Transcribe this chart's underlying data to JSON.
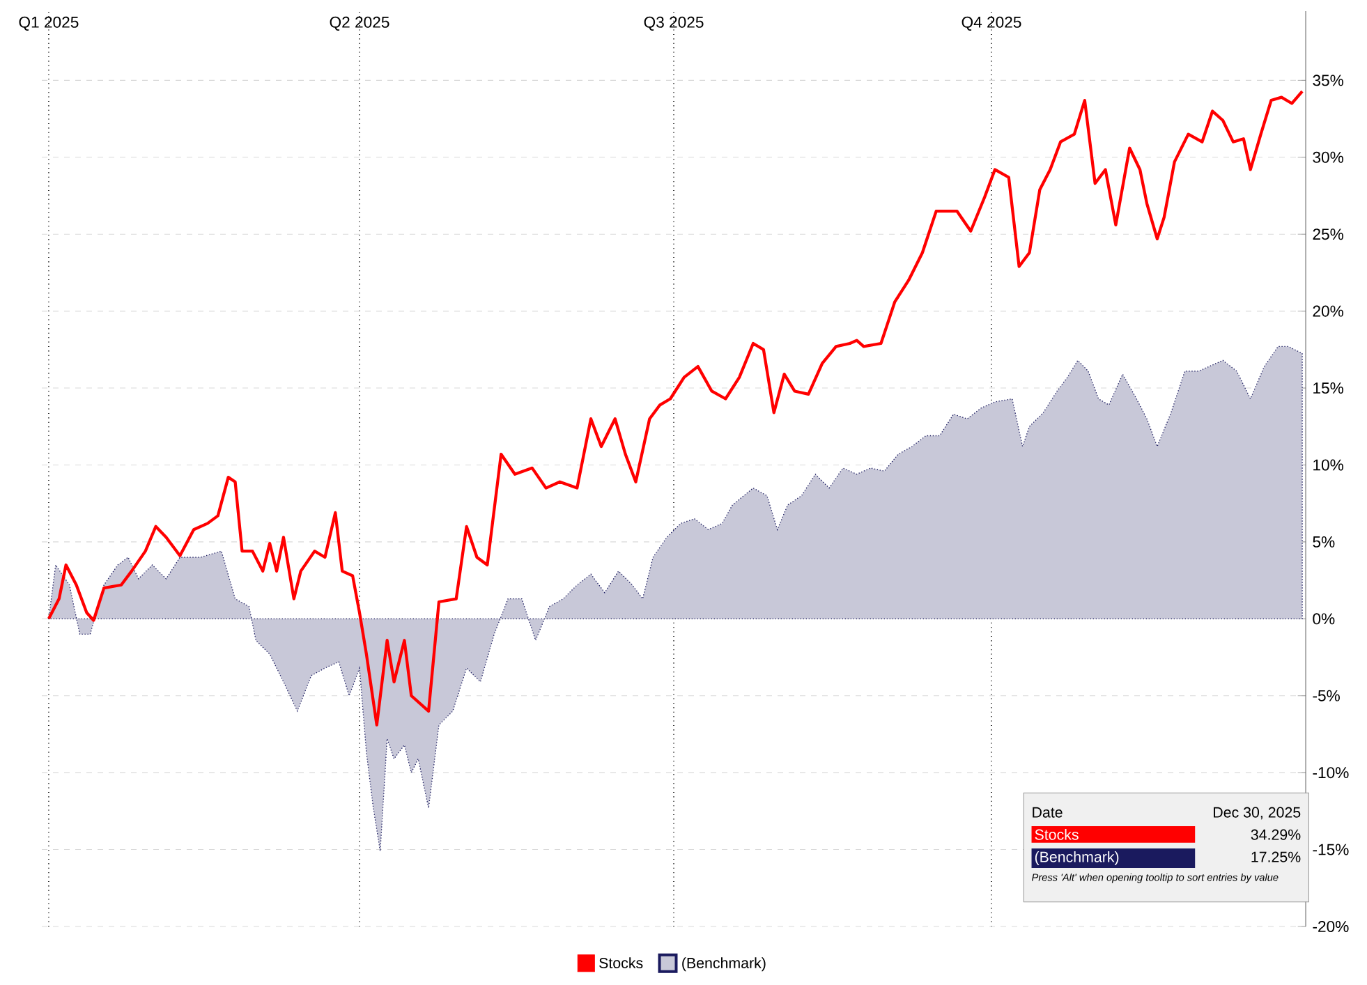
{
  "chart_data": {
    "type": "line",
    "xlim": [
      "2024-12-30",
      "2025-12-31"
    ],
    "ylim": [
      -20,
      39.5
    ],
    "yticks": [
      {
        "value": -20,
        "label": "-20%"
      },
      {
        "value": -15,
        "label": "-15%"
      },
      {
        "value": -10,
        "label": "-10%"
      },
      {
        "value": -5,
        "label": "-5%"
      },
      {
        "value": 0,
        "label": "0%"
      },
      {
        "value": 5,
        "label": "5%"
      },
      {
        "value": 10,
        "label": "10%"
      },
      {
        "value": 15,
        "label": "15%"
      },
      {
        "value": 20,
        "label": "20%"
      },
      {
        "value": 25,
        "label": "25%"
      },
      {
        "value": 30,
        "label": "30%"
      },
      {
        "value": 35,
        "label": "35%"
      }
    ],
    "xticks": [
      {
        "value": "2025-01-01",
        "label": "Q1 2025"
      },
      {
        "value": "2025-04-01",
        "label": "Q2 2025"
      },
      {
        "value": "2025-07-01",
        "label": "Q3 2025"
      },
      {
        "value": "2025-10-01",
        "label": "Q4 2025"
      }
    ],
    "grid": true,
    "legend": "bottom",
    "annotations": [
      "Date",
      "Dec 30, 2025",
      "Stocks",
      "34.29%",
      "(Benchmark)",
      "17.25%",
      "Press 'Alt' when opening tooltip to sort entries by value"
    ],
    "series": [
      {
        "name": "Stocks",
        "color": "#ff0000",
        "line_style": "solid",
        "x": [
          "2025-01-01",
          "2025-01-04",
          "2025-01-06",
          "2025-01-09",
          "2025-01-12",
          "2025-01-14",
          "2025-01-17",
          "2025-01-22",
          "2025-01-25",
          "2025-01-29",
          "2025-02-01",
          "2025-02-04",
          "2025-02-08",
          "2025-02-12",
          "2025-02-16",
          "2025-02-19",
          "2025-02-22",
          "2025-02-24",
          "2025-02-26",
          "2025-03-01",
          "2025-03-04",
          "2025-03-06",
          "2025-03-08",
          "2025-03-10",
          "2025-03-13",
          "2025-03-15",
          "2025-03-19",
          "2025-03-22",
          "2025-03-25",
          "2025-03-27",
          "2025-03-30",
          "2025-04-01",
          "2025-04-03",
          "2025-04-06",
          "2025-04-09",
          "2025-04-11",
          "2025-04-14",
          "2025-04-16",
          "2025-04-21",
          "2025-04-24",
          "2025-04-29",
          "2025-05-02",
          "2025-05-05",
          "2025-05-08",
          "2025-05-12",
          "2025-05-16",
          "2025-05-21",
          "2025-05-25",
          "2025-05-29",
          "2025-06-03",
          "2025-06-07",
          "2025-06-10",
          "2025-06-14",
          "2025-06-17",
          "2025-06-20",
          "2025-06-24",
          "2025-06-27",
          "2025-06-30",
          "2025-07-04",
          "2025-07-08",
          "2025-07-12",
          "2025-07-16",
          "2025-07-20",
          "2025-07-24",
          "2025-07-27",
          "2025-07-30",
          "2025-08-02",
          "2025-08-05",
          "2025-08-09",
          "2025-08-13",
          "2025-08-17",
          "2025-08-21",
          "2025-08-23",
          "2025-08-25",
          "2025-08-30",
          "2025-09-03",
          "2025-09-07",
          "2025-09-11",
          "2025-09-15",
          "2025-09-21",
          "2025-09-25",
          "2025-09-29",
          "2025-10-02",
          "2025-10-06",
          "2025-10-09",
          "2025-10-12",
          "2025-10-15",
          "2025-10-18",
          "2025-10-21",
          "2025-10-25",
          "2025-10-28",
          "2025-10-31",
          "2025-11-03",
          "2025-11-06",
          "2025-11-10",
          "2025-11-13",
          "2025-11-15",
          "2025-11-18",
          "2025-11-20",
          "2025-11-23",
          "2025-11-27",
          "2025-12-01",
          "2025-12-04",
          "2025-12-07",
          "2025-12-10",
          "2025-12-13",
          "2025-12-15",
          "2025-12-18",
          "2025-12-21",
          "2025-12-24",
          "2025-12-27",
          "2025-12-30"
        ],
        "values": [
          0,
          1.3,
          3.5,
          2.2,
          0.4,
          -0.1,
          2.0,
          2.2,
          3.1,
          4.4,
          6.0,
          5.3,
          4.1,
          5.8,
          6.2,
          6.7,
          9.2,
          8.9,
          4.4,
          4.4,
          3.1,
          4.9,
          3.1,
          5.3,
          1.3,
          3.1,
          4.4,
          4.0,
          6.9,
          3.1,
          2.8,
          0.4,
          -2.3,
          -6.9,
          -1.4,
          -4.1,
          -1.4,
          -5.0,
          -6.0,
          1.1,
          1.3,
          6.0,
          4.0,
          3.5,
          10.7,
          9.4,
          9.8,
          8.5,
          8.9,
          8.5,
          13.0,
          11.2,
          13.0,
          10.7,
          8.9,
          13.0,
          13.9,
          14.3,
          15.7,
          16.4,
          14.8,
          14.3,
          15.7,
          17.9,
          17.5,
          13.4,
          15.9,
          14.8,
          14.6,
          16.6,
          17.7,
          17.9,
          18.1,
          17.7,
          17.9,
          20.6,
          22.0,
          23.8,
          26.5,
          26.5,
          25.2,
          27.4,
          29.2,
          28.7,
          22.9,
          23.8,
          27.9,
          29.2,
          31.0,
          31.5,
          33.7,
          28.3,
          29.2,
          25.6,
          30.6,
          29.2,
          27.0,
          24.7,
          26.1,
          29.7,
          31.5,
          31.0,
          33.0,
          32.4,
          31.0,
          31.2,
          29.2,
          31.5,
          33.7,
          33.9,
          33.5,
          34.29
        ]
      },
      {
        "name": "(Benchmark)",
        "type": "area",
        "color": "#1a1a5e",
        "line_style": "dotted",
        "x": [
          "2025-01-01",
          "2025-01-03",
          "2025-01-07",
          "2025-01-10",
          "2025-01-13",
          "2025-01-17",
          "2025-01-21",
          "2025-01-24",
          "2025-01-27",
          "2025-01-31",
          "2025-02-04",
          "2025-02-08",
          "2025-02-14",
          "2025-02-20",
          "2025-02-24",
          "2025-02-28",
          "2025-03-02",
          "2025-03-06",
          "2025-03-10",
          "2025-03-14",
          "2025-03-18",
          "2025-03-22",
          "2025-03-26",
          "2025-03-29",
          "2025-04-01",
          "2025-04-03",
          "2025-04-05",
          "2025-04-07",
          "2025-04-09",
          "2025-04-11",
          "2025-04-14",
          "2025-04-16",
          "2025-04-18",
          "2025-04-21",
          "2025-04-24",
          "2025-04-28",
          "2025-05-02",
          "2025-05-06",
          "2025-05-10",
          "2025-05-14",
          "2025-05-18",
          "2025-05-22",
          "2025-05-26",
          "2025-05-30",
          "2025-06-03",
          "2025-06-07",
          "2025-06-11",
          "2025-06-15",
          "2025-06-19",
          "2025-06-22",
          "2025-06-25",
          "2025-06-29",
          "2025-07-03",
          "2025-07-07",
          "2025-07-11",
          "2025-07-15",
          "2025-07-18",
          "2025-07-24",
          "2025-07-28",
          "2025-07-31",
          "2025-08-03",
          "2025-08-07",
          "2025-08-11",
          "2025-08-15",
          "2025-08-19",
          "2025-08-23",
          "2025-08-27",
          "2025-08-31",
          "2025-09-04",
          "2025-09-08",
          "2025-09-12",
          "2025-09-16",
          "2025-09-20",
          "2025-09-24",
          "2025-09-28",
          "2025-10-02",
          "2025-10-07",
          "2025-10-10",
          "2025-10-12",
          "2025-10-16",
          "2025-10-20",
          "2025-10-23",
          "2025-10-26",
          "2025-10-29",
          "2025-11-01",
          "2025-11-04",
          "2025-11-08",
          "2025-11-12",
          "2025-11-15",
          "2025-11-18",
          "2025-11-22",
          "2025-11-26",
          "2025-11-30",
          "2025-12-03",
          "2025-12-07",
          "2025-12-11",
          "2025-12-15",
          "2025-12-19",
          "2025-12-23",
          "2025-12-26",
          "2025-12-30"
        ],
        "values": [
          0,
          3.5,
          2.2,
          -1.0,
          -1.0,
          2.2,
          3.5,
          4.0,
          2.6,
          3.5,
          2.6,
          4.0,
          4.0,
          4.4,
          1.3,
          0.8,
          -1.4,
          -2.3,
          -4.1,
          -6.0,
          -3.7,
          -3.2,
          -2.8,
          -5.0,
          -3.2,
          -8.7,
          -12.3,
          -15.1,
          -7.8,
          -9.1,
          -8.2,
          -10.0,
          -9.1,
          -12.3,
          -6.9,
          -6.0,
          -3.2,
          -4.1,
          -1.0,
          1.3,
          1.3,
          -1.4,
          0.8,
          1.3,
          2.2,
          2.9,
          1.7,
          3.1,
          2.2,
          1.3,
          4.0,
          5.3,
          6.2,
          6.5,
          5.8,
          6.2,
          7.4,
          8.5,
          8.0,
          5.8,
          7.4,
          8.0,
          9.4,
          8.5,
          9.8,
          9.4,
          9.8,
          9.6,
          10.7,
          11.2,
          11.9,
          11.9,
          13.3,
          13.0,
          13.7,
          14.1,
          14.3,
          11.2,
          12.5,
          13.4,
          14.8,
          15.7,
          16.8,
          16.1,
          14.3,
          13.9,
          15.9,
          14.3,
          13.0,
          11.2,
          13.4,
          16.1,
          16.1,
          16.4,
          16.8,
          16.1,
          14.3,
          16.4,
          17.7,
          17.7,
          17.25
        ]
      }
    ]
  }
}
